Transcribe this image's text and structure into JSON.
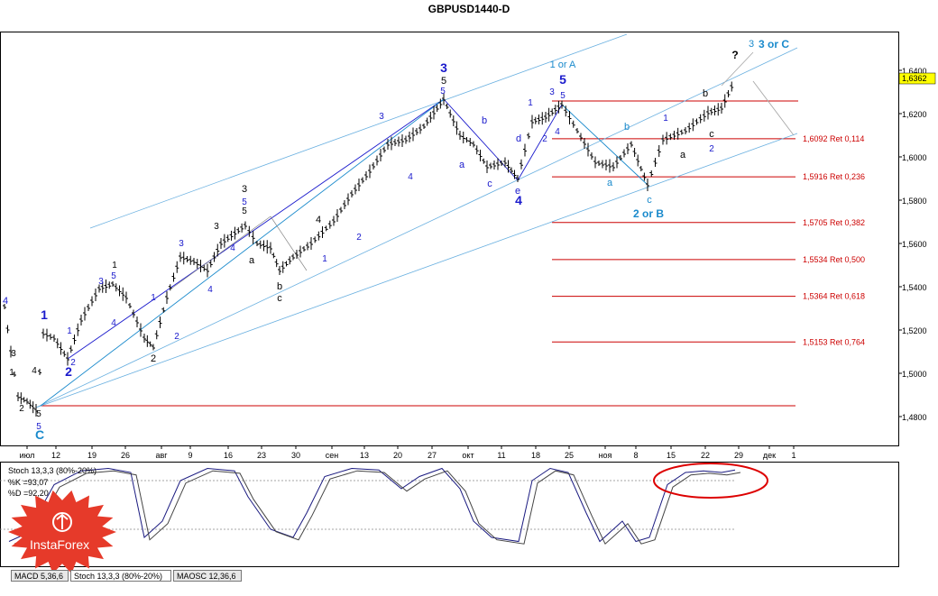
{
  "chart_data": {
    "type": "candlestick",
    "title": "GBPUSD1440-D",
    "y_ticks": [
      "1,6400",
      "1,6200",
      "1,6000",
      "1,5800",
      "1,5600",
      "1,5400",
      "1,5200",
      "1,5000",
      "1,4800"
    ],
    "last_price": "1,6362",
    "x_ticks": [
      "июл",
      "12",
      "19",
      "26",
      "авг",
      "9",
      "16",
      "23",
      "30",
      "сен",
      "13",
      "20",
      "27",
      "окт",
      "11",
      "18",
      "25",
      "ноя",
      "8",
      "15",
      "22",
      "29",
      "дек",
      "1"
    ],
    "fib_levels": [
      {
        "label": "1,6092 Ret 0,114",
        "value": 1.6092
      },
      {
        "label": "1,5916 Ret 0,236",
        "value": 1.5916
      },
      {
        "label": "1,5705 Ret 0,382",
        "value": 1.5705
      },
      {
        "label": "1,5534 Ret 0,500",
        "value": 1.5534
      },
      {
        "label": "1,5364 Ret 0,618",
        "value": 1.5364
      },
      {
        "label": "1,5153 Ret 0,764",
        "value": 1.5153
      }
    ],
    "wave_labels": [
      {
        "text": "4",
        "color": "#1a1acc",
        "size": 11
      },
      {
        "text": "1",
        "color": "#000000",
        "size": 10
      },
      {
        "text": "2",
        "color": "#000000",
        "size": 10
      },
      {
        "text": "3",
        "color": "#000000",
        "size": 10
      },
      {
        "text": "4",
        "color": "#000000",
        "size": 10
      },
      {
        "text": "5",
        "color": "#000000",
        "size": 10
      },
      {
        "text": "5",
        "color": "#1a1acc",
        "size": 10
      },
      {
        "text": "C",
        "color": "#1a8acc",
        "size": 14
      },
      {
        "text": "1",
        "color": "#1a1acc",
        "size": 14
      },
      {
        "text": "1",
        "color": "#1a1acc",
        "size": 10
      },
      {
        "text": "2",
        "color": "#1a1acc",
        "size": 10
      },
      {
        "text": "2",
        "color": "#1a1acc",
        "size": 14
      },
      {
        "text": "3",
        "color": "#1a1acc",
        "size": 10
      },
      {
        "text": "1",
        "color": "#000000",
        "size": 10
      },
      {
        "text": "5",
        "color": "#1a1acc",
        "size": 10
      },
      {
        "text": "4",
        "color": "#1a1acc",
        "size": 10
      },
      {
        "text": "1",
        "color": "#1a1acc",
        "size": 10
      },
      {
        "text": "2",
        "color": "#000000",
        "size": 11
      },
      {
        "text": "2",
        "color": "#1a1acc",
        "size": 10
      },
      {
        "text": "3",
        "color": "#1a1acc",
        "size": 10
      },
      {
        "text": "4",
        "color": "#1a1acc",
        "size": 10
      },
      {
        "text": "3",
        "color": "#000000",
        "size": 10
      },
      {
        "text": "4",
        "color": "#1a1acc",
        "size": 10
      },
      {
        "text": "3",
        "color": "#000000",
        "size": 11
      },
      {
        "text": "5",
        "color": "#1a1acc",
        "size": 10
      },
      {
        "text": "5",
        "color": "#000000",
        "size": 10
      },
      {
        "text": "a",
        "color": "#000000",
        "size": 11
      },
      {
        "text": "b",
        "color": "#000000",
        "size": 11
      },
      {
        "text": "c",
        "color": "#000000",
        "size": 11
      },
      {
        "text": "4",
        "color": "#000000",
        "size": 11
      },
      {
        "text": "1",
        "color": "#1a1acc",
        "size": 10
      },
      {
        "text": "2",
        "color": "#1a1acc",
        "size": 10
      },
      {
        "text": "3",
        "color": "#1a1acc",
        "size": 10
      },
      {
        "text": "4",
        "color": "#1a1acc",
        "size": 10
      },
      {
        "text": "3",
        "color": "#1a1acc",
        "size": 14
      },
      {
        "text": "5",
        "color": "#000000",
        "size": 11
      },
      {
        "text": "5",
        "color": "#1a1acc",
        "size": 10
      },
      {
        "text": "a",
        "color": "#1a1acc",
        "size": 11
      },
      {
        "text": "b",
        "color": "#1a1acc",
        "size": 11
      },
      {
        "text": "c",
        "color": "#1a1acc",
        "size": 11
      },
      {
        "text": "d",
        "color": "#1a1acc",
        "size": 11
      },
      {
        "text": "e",
        "color": "#1a1acc",
        "size": 11
      },
      {
        "text": "4",
        "color": "#1a1acc",
        "size": 14
      },
      {
        "text": "1",
        "color": "#1a1acc",
        "size": 10
      },
      {
        "text": "2",
        "color": "#1a1acc",
        "size": 10
      },
      {
        "text": "3",
        "color": "#1a1acc",
        "size": 10
      },
      {
        "text": "4",
        "color": "#1a1acc",
        "size": 10
      },
      {
        "text": "5",
        "color": "#1a1acc",
        "size": 10
      },
      {
        "text": "5",
        "color": "#1a1acc",
        "size": 14
      },
      {
        "text": "1 or A",
        "color": "#1a8acc",
        "size": 11
      },
      {
        "text": "a",
        "color": "#1a8acc",
        "size": 11
      },
      {
        "text": "b",
        "color": "#1a8acc",
        "size": 11
      },
      {
        "text": "c",
        "color": "#1a8acc",
        "size": 11
      },
      {
        "text": "2 or B",
        "color": "#1a8acc",
        "size": 12
      },
      {
        "text": "1",
        "color": "#1a1acc",
        "size": 10
      },
      {
        "text": "a",
        "color": "#000000",
        "size": 11
      },
      {
        "text": "b",
        "color": "#000000",
        "size": 11
      },
      {
        "text": "c",
        "color": "#000000",
        "size": 11
      },
      {
        "text": "2",
        "color": "#1a1acc",
        "size": 10
      },
      {
        "text": "?",
        "color": "#000000",
        "size": 12
      },
      {
        "text": "3",
        "color": "#1a8acc",
        "size": 11
      },
      {
        "text": "3 or C",
        "color": "#1a8acc",
        "size": 12
      }
    ],
    "stoch": {
      "title": "Stoch 13,3,3 (80%-20%)",
      "k_label": "%K =93,07",
      "d_label": "%D =92,20",
      "k": 93.07,
      "d": 92.2,
      "levels": [
        80,
        20
      ]
    }
  },
  "tabs": [
    "MACD 5,36,6",
    "Stoch 13,3,3 (80%-20%)",
    "MAOSC 12,36,6"
  ],
  "logo": {
    "text": "InstaForex"
  },
  "colors": {
    "fib": "#cc0000",
    "channel": "#4a9fd8",
    "blue_wave": "#1a1acc",
    "cyan_wave": "#1a8acc",
    "ellipse": "#dd0000"
  }
}
